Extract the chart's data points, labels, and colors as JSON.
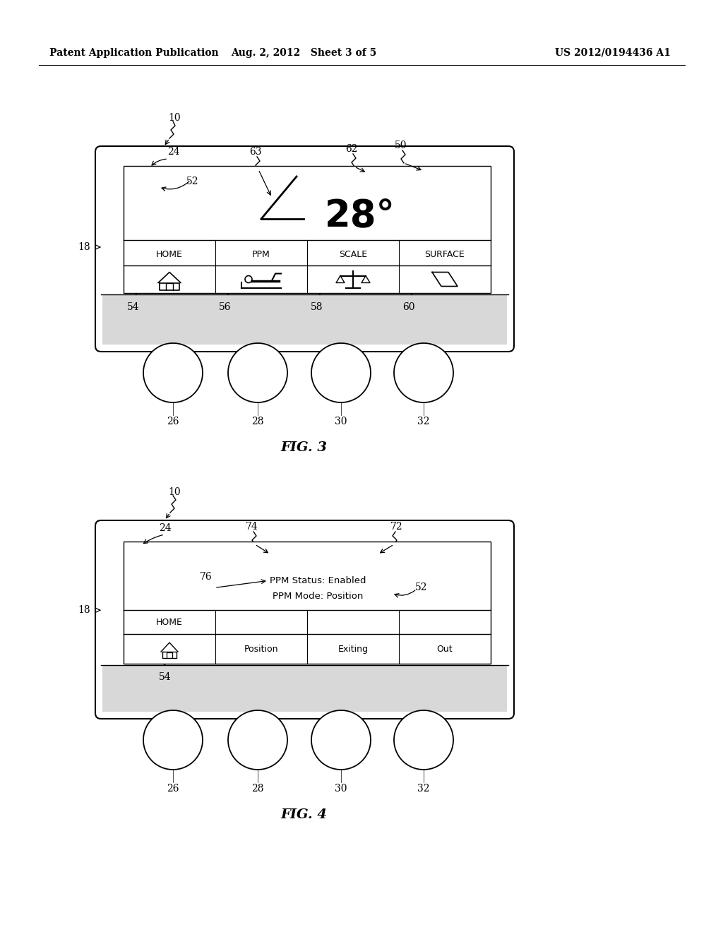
{
  "bg_color": "#ffffff",
  "header_left": "Patent Application Publication",
  "header_mid": "Aug. 2, 2012   Sheet 3 of 5",
  "header_right": "US 2012/0194436 A1",
  "fig3_label": "FIG. 3",
  "fig4_label": "FIG. 4"
}
